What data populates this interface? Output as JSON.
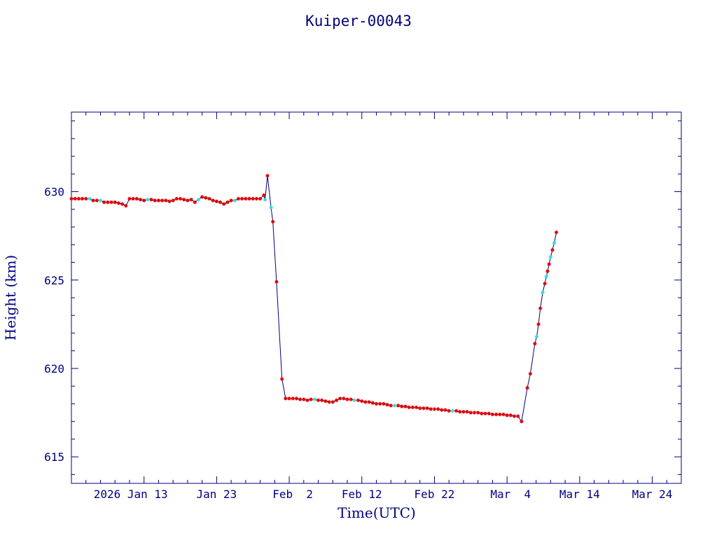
{
  "chart_data": {
    "type": "line",
    "title": "Kuiper-00043",
    "xlabel": "Time(UTC)",
    "ylabel": "Height (km)",
    "x_axis": "date",
    "xlim": [
      "2026-01-03",
      "2026-03-28"
    ],
    "ylim": [
      613.5,
      634.5
    ],
    "y_ticks": [
      615,
      620,
      625,
      630
    ],
    "x_ticks": [
      {
        "date": "2026-01-13",
        "label": "2026 Jan 13"
      },
      {
        "date": "2026-01-23",
        "label": "Jan 23"
      },
      {
        "date": "2026-02-02",
        "label": "Feb  2"
      },
      {
        "date": "2026-02-12",
        "label": "Feb 12"
      },
      {
        "date": "2026-02-22",
        "label": "Feb 22"
      },
      {
        "date": "2026-03-04",
        "label": "Mar  4"
      },
      {
        "date": "2026-03-14",
        "label": "Mar 14"
      },
      {
        "date": "2026-03-24",
        "label": "Mar 24"
      }
    ],
    "grid": false,
    "line_color": "#000080",
    "marker_colors": {
      "red": "#dd0000",
      "cyan": "#33dddd"
    },
    "series": [
      {
        "points": [
          [
            "2026-01-03 00:00",
            629.6,
            "red"
          ],
          [
            "2026-01-03 12:00",
            629.6,
            "red"
          ],
          [
            "2026-01-04 00:00",
            629.6,
            "red"
          ],
          [
            "2026-01-04 12:00",
            629.6,
            "red"
          ],
          [
            "2026-01-05 00:00",
            629.6,
            "red"
          ],
          [
            "2026-01-05 12:00",
            629.6,
            "cyan"
          ],
          [
            "2026-01-06 00:00",
            629.5,
            "red"
          ],
          [
            "2026-01-06 12:00",
            629.5,
            "red"
          ],
          [
            "2026-01-07 00:00",
            629.5,
            "cyan"
          ],
          [
            "2026-01-07 12:00",
            629.4,
            "red"
          ],
          [
            "2026-01-08 00:00",
            629.4,
            "red"
          ],
          [
            "2026-01-08 12:00",
            629.4,
            "red"
          ],
          [
            "2026-01-09 00:00",
            629.4,
            "red"
          ],
          [
            "2026-01-09 12:00",
            629.35,
            "red"
          ],
          [
            "2026-01-10 00:00",
            629.3,
            "red"
          ],
          [
            "2026-01-10 12:00",
            629.2,
            "red"
          ],
          [
            "2026-01-11 00:00",
            629.6,
            "red"
          ],
          [
            "2026-01-11 12:00",
            629.6,
            "red"
          ],
          [
            "2026-01-12 00:00",
            629.6,
            "red"
          ],
          [
            "2026-01-12 12:00",
            629.55,
            "red"
          ],
          [
            "2026-01-13 00:00",
            629.5,
            "red"
          ],
          [
            "2026-01-13 12:00",
            629.55,
            "cyan"
          ],
          [
            "2026-01-14 00:00",
            629.55,
            "red"
          ],
          [
            "2026-01-14 12:00",
            629.5,
            "red"
          ],
          [
            "2026-01-15 00:00",
            629.5,
            "red"
          ],
          [
            "2026-01-15 12:00",
            629.5,
            "red"
          ],
          [
            "2026-01-16 00:00",
            629.5,
            "red"
          ],
          [
            "2026-01-16 12:00",
            629.45,
            "red"
          ],
          [
            "2026-01-17 00:00",
            629.5,
            "red"
          ],
          [
            "2026-01-17 12:00",
            629.6,
            "red"
          ],
          [
            "2026-01-18 00:00",
            629.6,
            "red"
          ],
          [
            "2026-01-18 12:00",
            629.55,
            "red"
          ],
          [
            "2026-01-19 00:00",
            629.5,
            "red"
          ],
          [
            "2026-01-19 12:00",
            629.55,
            "red"
          ],
          [
            "2026-01-20 00:00",
            629.4,
            "red"
          ],
          [
            "2026-01-20 12:00",
            629.55,
            "cyan"
          ],
          [
            "2026-01-21 00:00",
            629.7,
            "red"
          ],
          [
            "2026-01-21 12:00",
            629.65,
            "red"
          ],
          [
            "2026-01-22 00:00",
            629.6,
            "red"
          ],
          [
            "2026-01-22 12:00",
            629.5,
            "red"
          ],
          [
            "2026-01-23 00:00",
            629.45,
            "red"
          ],
          [
            "2026-01-23 12:00",
            629.4,
            "red"
          ],
          [
            "2026-01-24 00:00",
            629.3,
            "red"
          ],
          [
            "2026-01-24 12:00",
            629.4,
            "red"
          ],
          [
            "2026-01-25 00:00",
            629.5,
            "red"
          ],
          [
            "2026-01-25 12:00",
            629.5,
            "cyan"
          ],
          [
            "2026-01-26 00:00",
            629.6,
            "red"
          ],
          [
            "2026-01-26 12:00",
            629.6,
            "red"
          ],
          [
            "2026-01-27 00:00",
            629.6,
            "red"
          ],
          [
            "2026-01-27 12:00",
            629.6,
            "red"
          ],
          [
            "2026-01-28 00:00",
            629.6,
            "red"
          ],
          [
            "2026-01-28 12:00",
            629.6,
            "red"
          ],
          [
            "2026-01-29 00:00",
            629.6,
            "red"
          ],
          [
            "2026-01-29 12:00",
            629.8,
            "red"
          ],
          [
            "2026-01-29 16:00",
            629.55,
            "cyan"
          ],
          [
            "2026-01-30 00:00",
            630.9,
            "red"
          ],
          [
            "2026-01-30 12:00",
            629.1,
            "cyan"
          ],
          [
            "2026-01-30 18:00",
            628.3,
            "red"
          ],
          [
            "2026-01-31 06:00",
            624.9,
            "red"
          ],
          [
            "2026-02-01 00:00",
            619.4,
            "red"
          ],
          [
            "2026-02-01 12:00",
            618.3,
            "red"
          ],
          [
            "2026-02-02 00:00",
            618.3,
            "red"
          ],
          [
            "2026-02-02 12:00",
            618.3,
            "red"
          ],
          [
            "2026-02-03 00:00",
            618.3,
            "red"
          ],
          [
            "2026-02-03 12:00",
            618.25,
            "red"
          ],
          [
            "2026-02-04 00:00",
            618.25,
            "red"
          ],
          [
            "2026-02-04 12:00",
            618.2,
            "red"
          ],
          [
            "2026-02-05 00:00",
            618.25,
            "red"
          ],
          [
            "2026-02-05 12:00",
            618.25,
            "cyan"
          ],
          [
            "2026-02-06 00:00",
            618.2,
            "red"
          ],
          [
            "2026-02-06 12:00",
            618.2,
            "red"
          ],
          [
            "2026-02-07 00:00",
            618.15,
            "red"
          ],
          [
            "2026-02-07 12:00",
            618.1,
            "red"
          ],
          [
            "2026-02-08 00:00",
            618.1,
            "red"
          ],
          [
            "2026-02-08 12:00",
            618.2,
            "red"
          ],
          [
            "2026-02-09 00:00",
            618.3,
            "red"
          ],
          [
            "2026-02-09 12:00",
            618.3,
            "red"
          ],
          [
            "2026-02-10 00:00",
            618.25,
            "red"
          ],
          [
            "2026-02-10 12:00",
            618.25,
            "red"
          ],
          [
            "2026-02-11 00:00",
            618.2,
            "cyan"
          ],
          [
            "2026-02-11 12:00",
            618.2,
            "red"
          ],
          [
            "2026-02-12 00:00",
            618.15,
            "red"
          ],
          [
            "2026-02-12 12:00",
            618.1,
            "red"
          ],
          [
            "2026-02-13 00:00",
            618.1,
            "red"
          ],
          [
            "2026-02-13 12:00",
            618.05,
            "red"
          ],
          [
            "2026-02-14 00:00",
            618.0,
            "red"
          ],
          [
            "2026-02-14 12:00",
            618.0,
            "red"
          ],
          [
            "2026-02-15 00:00",
            618.0,
            "red"
          ],
          [
            "2026-02-15 12:00",
            617.95,
            "red"
          ],
          [
            "2026-02-16 00:00",
            617.9,
            "red"
          ],
          [
            "2026-02-16 12:00",
            617.9,
            "cyan"
          ],
          [
            "2026-02-17 00:00",
            617.9,
            "red"
          ],
          [
            "2026-02-17 12:00",
            617.85,
            "red"
          ],
          [
            "2026-02-18 00:00",
            617.85,
            "red"
          ],
          [
            "2026-02-18 12:00",
            617.8,
            "red"
          ],
          [
            "2026-02-19 00:00",
            617.8,
            "red"
          ],
          [
            "2026-02-19 12:00",
            617.8,
            "red"
          ],
          [
            "2026-02-20 00:00",
            617.75,
            "red"
          ],
          [
            "2026-02-20 12:00",
            617.75,
            "red"
          ],
          [
            "2026-02-21 00:00",
            617.75,
            "red"
          ],
          [
            "2026-02-21 12:00",
            617.7,
            "red"
          ],
          [
            "2026-02-22 00:00",
            617.7,
            "red"
          ],
          [
            "2026-02-22 12:00",
            617.7,
            "red"
          ],
          [
            "2026-02-23 00:00",
            617.65,
            "red"
          ],
          [
            "2026-02-23 12:00",
            617.65,
            "red"
          ],
          [
            "2026-02-24 00:00",
            617.6,
            "red"
          ],
          [
            "2026-02-24 12:00",
            617.6,
            "cyan"
          ],
          [
            "2026-02-25 00:00",
            617.6,
            "red"
          ],
          [
            "2026-02-25 12:00",
            617.55,
            "red"
          ],
          [
            "2026-02-26 00:00",
            617.55,
            "red"
          ],
          [
            "2026-02-26 12:00",
            617.55,
            "red"
          ],
          [
            "2026-02-27 00:00",
            617.5,
            "red"
          ],
          [
            "2026-02-27 12:00",
            617.5,
            "red"
          ],
          [
            "2026-02-28 00:00",
            617.5,
            "red"
          ],
          [
            "2026-02-28 12:00",
            617.45,
            "red"
          ],
          [
            "2026-03-01 00:00",
            617.45,
            "red"
          ],
          [
            "2026-03-01 12:00",
            617.45,
            "red"
          ],
          [
            "2026-03-02 00:00",
            617.4,
            "red"
          ],
          [
            "2026-03-02 12:00",
            617.4,
            "red"
          ],
          [
            "2026-03-03 00:00",
            617.4,
            "red"
          ],
          [
            "2026-03-03 12:00",
            617.4,
            "red"
          ],
          [
            "2026-03-04 00:00",
            617.35,
            "red"
          ],
          [
            "2026-03-04 12:00",
            617.35,
            "red"
          ],
          [
            "2026-03-05 00:00",
            617.3,
            "red"
          ],
          [
            "2026-03-05 12:00",
            617.3,
            "red"
          ],
          [
            "2026-03-06 00:00",
            617.0,
            "red"
          ],
          [
            "2026-03-06 19:00",
            618.9,
            "red"
          ],
          [
            "2026-03-07 05:00",
            619.7,
            "red"
          ],
          [
            "2026-03-07 20:00",
            621.4,
            "red"
          ],
          [
            "2026-03-08 02:00",
            621.8,
            "cyan"
          ],
          [
            "2026-03-08 08:00",
            622.5,
            "red"
          ],
          [
            "2026-03-08 14:00",
            623.4,
            "red"
          ],
          [
            "2026-03-08 22:00",
            624.3,
            "cyan"
          ],
          [
            "2026-03-09 05:00",
            624.8,
            "red"
          ],
          [
            "2026-03-09 10:00",
            625.2,
            "cyan"
          ],
          [
            "2026-03-09 14:00",
            625.5,
            "red"
          ],
          [
            "2026-03-09 19:00",
            625.9,
            "red"
          ],
          [
            "2026-03-10 00:00",
            626.3,
            "cyan"
          ],
          [
            "2026-03-10 06:00",
            626.7,
            "red"
          ],
          [
            "2026-03-10 12:00",
            627.1,
            "cyan"
          ],
          [
            "2026-03-10 19:00",
            627.7,
            "red"
          ]
        ]
      }
    ]
  }
}
